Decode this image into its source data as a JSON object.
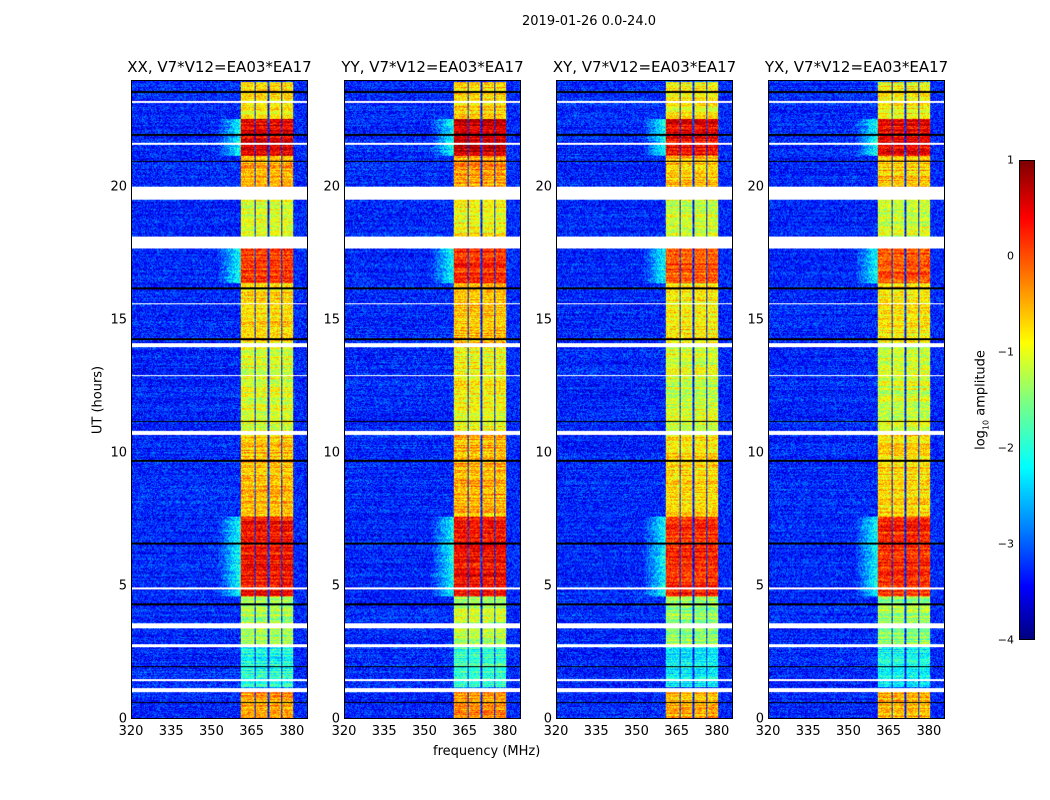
{
  "chart_data": {
    "type": "heatmap",
    "title": "2019-01-26 0.0-24.0",
    "xlabel": "frequency (MHz)",
    "ylabel": "UT (hours)",
    "xlim": [
      320,
      386
    ],
    "ylim": [
      0,
      24
    ],
    "xticks": [
      "320",
      "335",
      "350",
      "365",
      "380"
    ],
    "yticks": [
      "0",
      "5",
      "10",
      "15",
      "20"
    ],
    "panels": [
      {
        "title": "XX, V7*V12=EA03*EA17"
      },
      {
        "title": "YY, V7*V12=EA03*EA17"
      },
      {
        "title": "XY, V7*V12=EA03*EA17"
      },
      {
        "title": "YX, V7*V12=EA03*EA17"
      }
    ],
    "colorbar": {
      "label_prefix": "log",
      "label_sub": "10",
      "label_suffix": " amplitude",
      "range": [
        -4,
        1
      ],
      "ticks": [
        "1",
        "0",
        "−1",
        "−2",
        "−3",
        "−4"
      ],
      "colormap": "jet"
    },
    "signal_bands_mhz": [
      [
        361,
        366
      ],
      [
        366.5,
        371
      ],
      [
        371.5,
        376
      ],
      [
        376.5,
        380.5
      ]
    ],
    "background_log_amplitude": -3.2,
    "signal_levels": [
      {
        "t": [
          0,
          1.0
        ],
        "level": -0.4
      },
      {
        "t": [
          1.2,
          2.7
        ],
        "level": -2.0
      },
      {
        "t": [
          2.8,
          4.6
        ],
        "level": -1.3
      },
      {
        "t": [
          4.6,
          7.6
        ],
        "level": 0.3
      },
      {
        "t": [
          7.6,
          10.7
        ],
        "level": -0.6
      },
      {
        "t": [
          10.85,
          14.0
        ],
        "level": -1.0
      },
      {
        "t": [
          14.15,
          16.4
        ],
        "level": -0.7
      },
      {
        "t": [
          16.4,
          17.7
        ],
        "level": 0.1
      },
      {
        "t": [
          18.15,
          19.55
        ],
        "level": -1.0
      },
      {
        "t": [
          20.05,
          21.2
        ],
        "level": -0.5
      },
      {
        "t": [
          21.2,
          22.6
        ],
        "level": 0.5
      },
      {
        "t": [
          22.6,
          24
        ],
        "level": -0.8
      }
    ],
    "flagged_hours": [
      [
        1.0,
        1.15
      ],
      [
        1.4,
        1.5
      ],
      [
        2.7,
        2.8
      ],
      [
        3.4,
        3.6
      ],
      [
        4.85,
        4.95
      ],
      [
        10.7,
        10.85
      ],
      [
        12.9,
        12.95
      ],
      [
        14.0,
        14.15
      ],
      [
        15.6,
        15.65
      ],
      [
        17.7,
        18.15
      ],
      [
        19.55,
        20.05
      ],
      [
        21.6,
        21.7
      ],
      [
        23.2,
        23.25
      ]
    ],
    "dark_lines_hours": [
      0.6,
      1.95,
      4.3,
      6.6,
      9.7,
      11.2,
      14.3,
      16.2,
      21.0,
      22.0,
      23.6
    ]
  }
}
